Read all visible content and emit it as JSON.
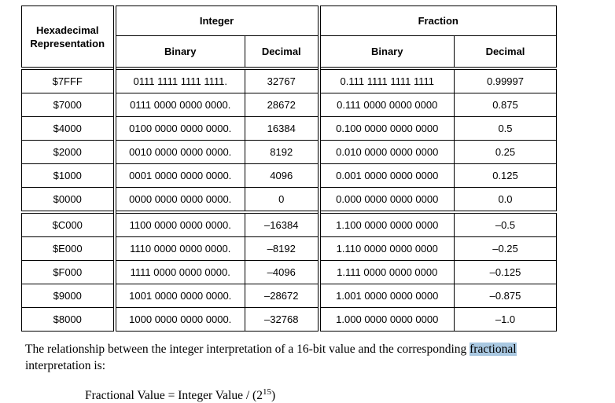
{
  "table": {
    "header": {
      "hex": "Hexadecimal Representation",
      "integer": "Integer",
      "fraction": "Fraction",
      "int_binary": "Binary",
      "int_decimal": "Decimal",
      "frac_binary": "Binary",
      "frac_decimal": "Decimal"
    },
    "rows": [
      {
        "hex": "$7FFF",
        "int_binary": "0111 1111 1111 1111.",
        "int_decimal": "32767",
        "frac_binary": "0.111 1111 1111 1111",
        "frac_decimal": "0.99997"
      },
      {
        "hex": "$7000",
        "int_binary": "0111 0000 0000 0000.",
        "int_decimal": "28672",
        "frac_binary": "0.111 0000 0000 0000",
        "frac_decimal": "0.875"
      },
      {
        "hex": "$4000",
        "int_binary": "0100 0000 0000 0000.",
        "int_decimal": "16384",
        "frac_binary": "0.100 0000 0000 0000",
        "frac_decimal": "0.5"
      },
      {
        "hex": "$2000",
        "int_binary": "0010 0000 0000 0000.",
        "int_decimal": "8192",
        "frac_binary": "0.010 0000 0000 0000",
        "frac_decimal": "0.25"
      },
      {
        "hex": "$1000",
        "int_binary": "0001 0000 0000 0000.",
        "int_decimal": "4096",
        "frac_binary": "0.001 0000 0000 0000",
        "frac_decimal": "0.125"
      },
      {
        "hex": "$0000",
        "int_binary": "0000 0000 0000 0000.",
        "int_decimal": "0",
        "frac_binary": "0.000 0000 0000 0000",
        "frac_decimal": "0.0"
      },
      {
        "hex": "$C000",
        "int_binary": "1100 0000 0000 0000.",
        "int_decimal": "–16384",
        "frac_binary": "1.100 0000 0000 0000",
        "frac_decimal": "–0.5"
      },
      {
        "hex": "$E000",
        "int_binary": "1110 0000 0000 0000.",
        "int_decimal": "–8192",
        "frac_binary": "1.110 0000 0000 0000",
        "frac_decimal": "–0.25"
      },
      {
        "hex": "$F000",
        "int_binary": "1111 0000 0000 0000.",
        "int_decimal": "–4096",
        "frac_binary": "1.111 0000 0000 0000",
        "frac_decimal": "–0.125"
      },
      {
        "hex": "$9000",
        "int_binary": "1001 0000 0000 0000.",
        "int_decimal": "–28672",
        "frac_binary": "1.001 0000 0000 0000",
        "frac_decimal": "–0.875"
      },
      {
        "hex": "$8000",
        "int_binary": "1000 0000 0000 0000.",
        "int_decimal": "–32768",
        "frac_binary": "1.000 0000 0000 0000",
        "frac_decimal": "–1.0"
      }
    ]
  },
  "paragraph": {
    "line1_before": "The relationship between the integer interpretation of a 16-bit value and the corresponding ",
    "highlight": "fractional",
    "line2": "interpretation is:",
    "highlight_color": "#a9c8e1"
  },
  "formula": {
    "base": "Fractional Value = Integer Value / (2",
    "exponent": "15",
    "close": ")"
  }
}
